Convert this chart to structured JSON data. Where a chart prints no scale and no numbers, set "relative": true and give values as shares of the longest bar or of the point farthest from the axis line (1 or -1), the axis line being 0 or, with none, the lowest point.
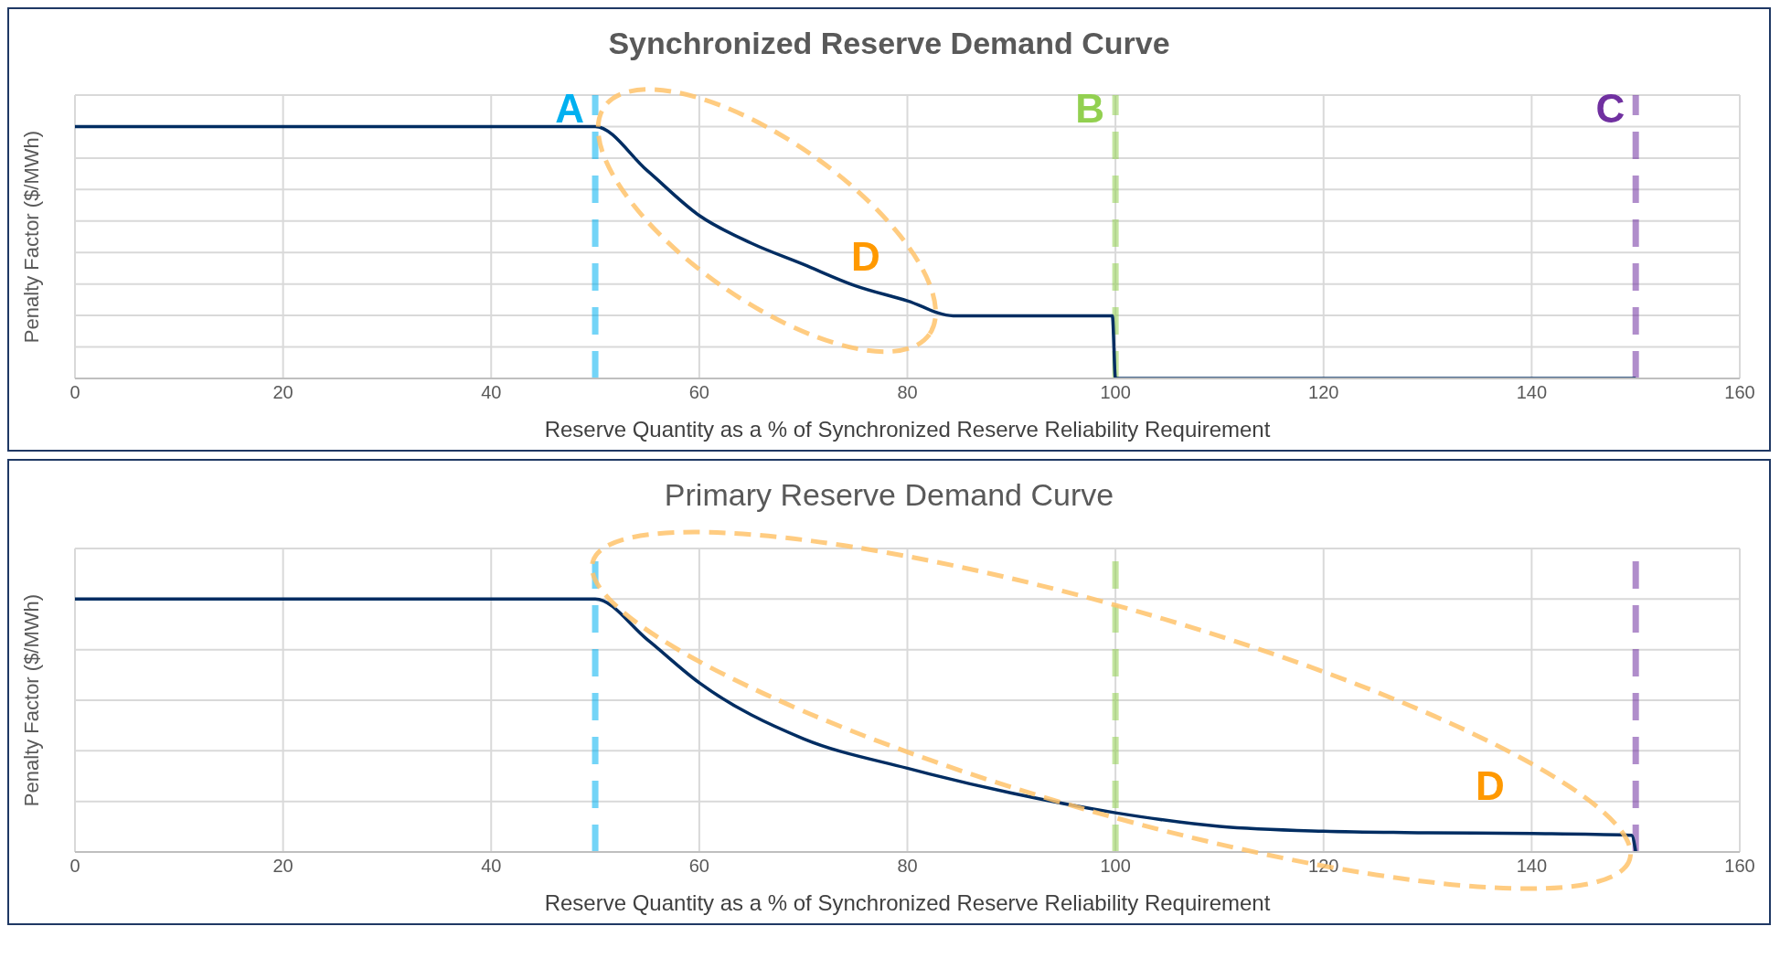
{
  "chart_data": [
    {
      "type": "line",
      "title": "Synchronized Reserve Demand Curve",
      "xlabel": "Reserve Quantity as a % of Synchronized Reserve Reliability Requirement",
      "ylabel": "Penalty Factor ($/MWh)",
      "relative": true,
      "xlim": [
        0,
        160
      ],
      "xticks": [
        0,
        20,
        40,
        60,
        80,
        100,
        120,
        140,
        160
      ],
      "grid": true,
      "line_style": "solid",
      "series": [
        {
          "color": "#002d62",
          "x": [
            0,
            50,
            55,
            60,
            65,
            70,
            75,
            80,
            84.4,
            99.7,
            100,
            150
          ],
          "values": [
            1,
            1,
            0.825,
            0.647,
            0.537,
            0.453,
            0.368,
            0.308,
            0.249,
            0.249,
            0,
            0
          ]
        }
      ],
      "ref_lines": [
        {
          "axis": "x",
          "value": 50,
          "label": "A",
          "color": "#00b0f0",
          "line_style": "dashed"
        },
        {
          "axis": "x",
          "value": 100,
          "label": "B",
          "color": "#92d050",
          "line_style": "dashed"
        },
        {
          "axis": "x",
          "value": 150,
          "label": "C",
          "color": "#7030a0",
          "line_style": "dashed"
        }
      ],
      "annotations": [
        "D"
      ]
    },
    {
      "type": "line",
      "title": "Primary Reserve Demand Curve",
      "xlabel": "Reserve Quantity as a % of Synchronized Reserve Reliability Requirement",
      "ylabel": "Penalty Factor ($/MWh)",
      "relative": true,
      "xlim": [
        0,
        160
      ],
      "xticks": [
        0,
        20,
        40,
        60,
        80,
        100,
        120,
        140,
        160
      ],
      "grid": true,
      "line_style": "solid",
      "series": [
        {
          "color": "#002d62",
          "x": [
            0,
            50,
            55,
            60,
            70,
            80,
            90,
            100,
            110,
            120,
            130,
            140,
            149.6,
            150
          ],
          "values": [
            1,
            1,
            0.84,
            0.669,
            0.448,
            0.331,
            0.233,
            0.155,
            0.101,
            0.082,
            0.076,
            0.073,
            0.066,
            0
          ]
        }
      ],
      "ref_lines": [
        {
          "axis": "x",
          "value": 50,
          "color": "#00b0f0",
          "line_style": "dashed"
        },
        {
          "axis": "x",
          "value": 100,
          "color": "#92d050",
          "line_style": "dashed"
        },
        {
          "axis": "x",
          "value": 150,
          "color": "#7030a0",
          "line_style": "dashed"
        }
      ],
      "annotations": [
        "D"
      ]
    }
  ]
}
